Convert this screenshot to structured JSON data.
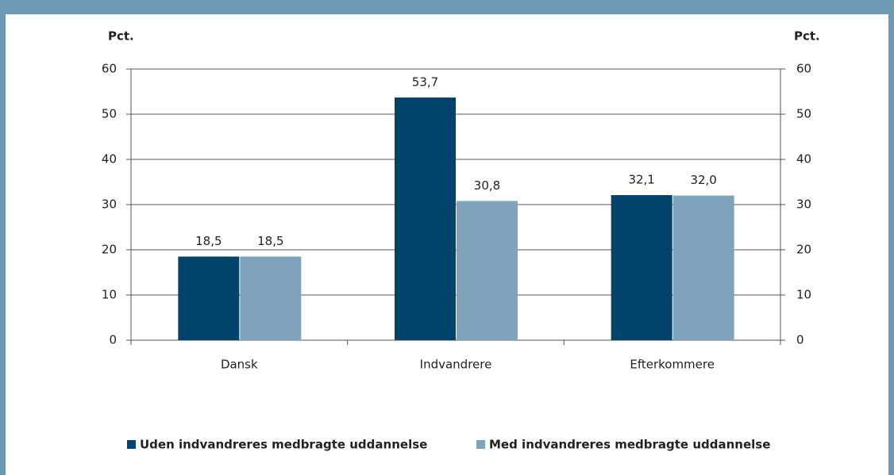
{
  "chart_data": {
    "type": "bar",
    "ylabel": "Pct.",
    "y2label": "Pct.",
    "categories": [
      "Dansk",
      "Indvandrere",
      "Efterkommere"
    ],
    "series": [
      {
        "name": "Uden indvandreres medbragte uddannelse",
        "color": "#00436b",
        "values": [
          18.5,
          53.7,
          32.1
        ],
        "value_labels": [
          "18,5",
          "53,7",
          "32,1"
        ]
      },
      {
        "name": "Med indvandreres medbragte uddannelse",
        "color": "#7fa3bb",
        "values": [
          18.5,
          30.8,
          32.0
        ],
        "value_labels": [
          "18,5",
          "30,8",
          "32,0"
        ]
      }
    ],
    "ylim": [
      0,
      60
    ],
    "yticks": [
      0,
      10,
      20,
      30,
      40,
      50,
      60
    ],
    "y2lim": [
      0,
      60
    ],
    "y2ticks": [
      0,
      10,
      20,
      30,
      40,
      50,
      60
    ],
    "grid": true,
    "legend": "bottom"
  }
}
